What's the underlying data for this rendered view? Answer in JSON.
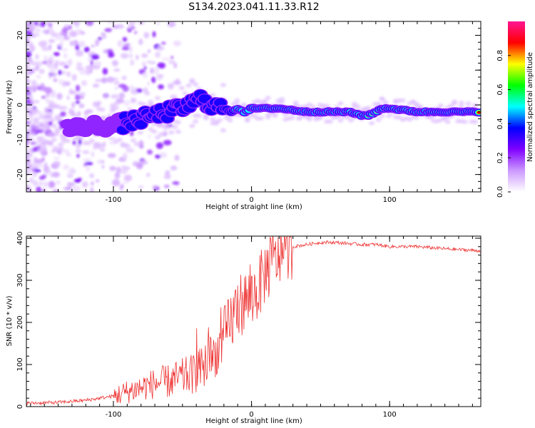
{
  "title": "S134.2023.041.11.33.R12",
  "chart_data": [
    {
      "type": "heatmap",
      "xlabel": "Height of straight line (km)",
      "ylabel": "Frequency (Hz)",
      "xlim": [
        -163,
        166
      ],
      "ylim": [
        -25,
        24
      ],
      "xticks": [
        -100,
        0,
        100
      ],
      "yticks": [
        -20,
        -10,
        0,
        10,
        20
      ],
      "colorbar": {
        "label": "Normalized spectral amplitude",
        "range": [
          0,
          1
        ],
        "ticks": [
          0.0,
          0.2,
          0.4,
          0.6,
          0.8
        ],
        "tick_labels": [
          "0.0",
          "0.2",
          "0.4",
          "0.6",
          "0.8"
        ],
        "colors": [
          "#ffffff",
          "#cc99ff",
          "#7f00ff",
          "#0000ff",
          "#00ffff",
          "#00ff00",
          "#ffff00",
          "#ff0000",
          "#ff1493"
        ]
      },
      "ridge": {
        "x": [
          -160,
          -150,
          -140,
          -130,
          -120,
          -110,
          -100,
          -90,
          -80,
          -70,
          -60,
          -50,
          -40,
          -35,
          -30,
          -20,
          -15,
          -10,
          -5,
          0,
          5,
          10,
          20,
          30,
          40,
          50,
          60,
          70,
          80,
          85,
          90,
          95,
          100,
          110,
          120,
          140,
          160,
          166
        ],
        "y": [
          -8,
          -7,
          -6,
          -7,
          -6,
          -6,
          -6,
          -5,
          -4,
          -3,
          -2,
          -1,
          1,
          2,
          0,
          -1,
          -2,
          -1,
          -2,
          -1,
          -1,
          -1,
          -1,
          -1.5,
          -2,
          -2,
          -2,
          -2,
          -3,
          -3,
          -2,
          -1,
          -1,
          -1.5,
          -2,
          -2,
          -2,
          -2
        ],
        "amplitude": [
          0.25,
          0.25,
          0.3,
          0.3,
          0.3,
          0.3,
          0.3,
          0.35,
          0.35,
          0.35,
          0.35,
          0.35,
          0.35,
          0.35,
          0.35,
          0.45,
          0.45,
          0.5,
          0.55,
          0.55,
          0.6,
          0.8,
          0.75,
          0.7,
          0.9,
          0.9,
          0.9,
          0.9,
          0.9,
          0.85,
          0.8,
          0.75,
          0.85,
          0.9,
          0.9,
          0.9,
          0.9,
          0.9
        ]
      }
    },
    {
      "type": "line",
      "xlabel": "Height of straight line (km)",
      "ylabel": "SNR (10 * v/v)",
      "xlim": [
        -163,
        166
      ],
      "ylim": [
        0,
        405
      ],
      "xticks": [
        -100,
        0,
        100
      ],
      "yticks": [
        0,
        100,
        200,
        300,
        400
      ],
      "color": "#ee3333",
      "series": [
        {
          "x": [
            -163,
            -140,
            -120,
            -100,
            -90,
            -80,
            -70,
            -60,
            -50,
            -40,
            -35,
            -30,
            -25,
            -20,
            -15,
            -10,
            -5,
            0,
            5,
            10,
            15,
            20,
            25,
            30,
            40,
            50,
            60,
            80,
            90,
            100,
            120,
            140,
            166
          ],
          "y": [
            8,
            10,
            15,
            25,
            35,
            45,
            55,
            60,
            70,
            80,
            95,
            110,
            130,
            160,
            200,
            240,
            250,
            260,
            280,
            320,
            340,
            360,
            370,
            380,
            385,
            390,
            390,
            385,
            385,
            380,
            380,
            375,
            370
          ]
        }
      ]
    }
  ]
}
